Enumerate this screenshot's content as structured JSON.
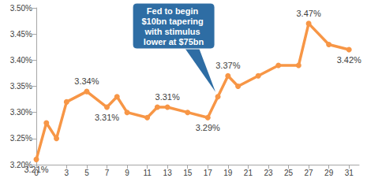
{
  "chart_data": {
    "type": "line",
    "x": [
      0,
      1,
      2,
      3,
      5,
      7,
      8,
      9,
      11,
      12,
      13,
      15,
      17,
      18,
      19,
      20,
      22,
      24,
      26,
      27,
      29,
      31
    ],
    "values": [
      3.21,
      3.28,
      3.25,
      3.32,
      3.34,
      3.31,
      3.33,
      3.3,
      3.29,
      3.31,
      3.31,
      3.3,
      3.29,
      3.33,
      3.37,
      3.35,
      3.37,
      3.39,
      3.39,
      3.47,
      3.43,
      3.42
    ],
    "value_labels": [
      "3.21%",
      null,
      null,
      null,
      "3.34%",
      "3.31%",
      null,
      null,
      null,
      null,
      "3.31%",
      null,
      "3.29%",
      null,
      "3.37%",
      null,
      null,
      null,
      null,
      "3.47%",
      null,
      "3.42%"
    ],
    "color": "#f79646",
    "marker": "circle",
    "xlim": [
      0,
      32
    ],
    "xticks": [
      0,
      3,
      5,
      7,
      9,
      11,
      13,
      15,
      17,
      19,
      21,
      23,
      25,
      27,
      29,
      31
    ],
    "ylim": [
      3.2,
      3.5
    ],
    "yticks": [
      {
        "value": 3.2,
        "label": "3.20%"
      },
      {
        "value": 3.25,
        "label": "3.25%"
      },
      {
        "value": 3.3,
        "label": "3.30%"
      },
      {
        "value": 3.35,
        "label": "3.35%"
      },
      {
        "value": 3.4,
        "label": "3.40%"
      },
      {
        "value": 3.45,
        "label": "3.45%"
      },
      {
        "value": 3.5,
        "label": "3.50%"
      }
    ],
    "grid": false,
    "annotations": [
      {
        "text": "Fed to begin $10bn tapering with stimulus lower at $75bn",
        "x": 18,
        "y": 3.33,
        "color": "#2e6da4"
      }
    ]
  }
}
